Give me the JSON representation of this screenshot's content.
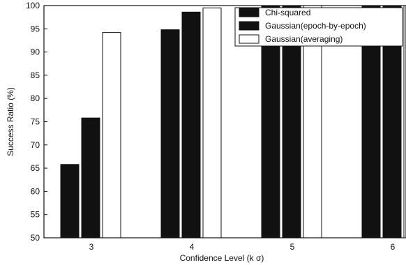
{
  "chart_data": {
    "type": "bar",
    "categories": [
      "3",
      "4",
      "5",
      "6"
    ],
    "series": [
      {
        "name": "Chi-squared",
        "values": [
          65.8,
          94.8,
          100,
          100
        ],
        "color": "#111111"
      },
      {
        "name": "Gaussian(epoch-by-epoch)",
        "values": [
          75.8,
          98.6,
          100,
          100
        ],
        "color": "#111111"
      },
      {
        "name": "Gaussian(averaging)",
        "values": [
          94.2,
          99.5,
          100,
          100
        ],
        "color": "#ffffff"
      }
    ],
    "xlabel": "Confidence Level (k σ)",
    "ylabel": "Success Ratio (%)",
    "ylim": [
      50,
      100
    ],
    "yticks": [
      50,
      55,
      60,
      65,
      70,
      75,
      80,
      85,
      90,
      95,
      100
    ],
    "legend_position": "top-right",
    "grid": false
  }
}
